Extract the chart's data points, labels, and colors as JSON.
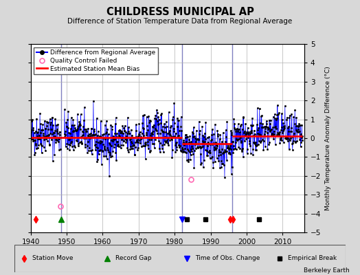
{
  "title": "CHILDRESS MUNICIPAL AP",
  "subtitle": "Difference of Station Temperature Data from Regional Average",
  "ylabel": "Monthly Temperature Anomaly Difference (°C)",
  "ylim": [
    -5,
    5
  ],
  "xlim": [
    1940,
    2016
  ],
  "xticks": [
    1940,
    1950,
    1960,
    1970,
    1980,
    1990,
    2000,
    2010
  ],
  "yticks": [
    -5,
    -4,
    -3,
    -2,
    -1,
    0,
    1,
    2,
    3,
    4,
    5
  ],
  "background_color": "#d8d8d8",
  "plot_bg_color": "#ffffff",
  "grid_color": "#b0b0b0",
  "line_color": "#0000ff",
  "bias_color": "#ff0000",
  "marker_color": "#000000",
  "qc_color": "#ff69b4",
  "vertical_line_color": "#8080c0",
  "vertical_lines": [
    1948.5,
    1982.0,
    1996.0
  ],
  "seed": 42,
  "bias_segments": [
    {
      "x_start": 1940,
      "x_end": 1948.5,
      "bias": 0.05
    },
    {
      "x_start": 1948.5,
      "x_end": 1982.0,
      "bias": 0.05
    },
    {
      "x_start": 1982.0,
      "x_end": 1996.0,
      "bias": -0.28
    },
    {
      "x_start": 1996.0,
      "x_end": 2015.5,
      "bias": 0.12
    }
  ],
  "qc_failed_points": [
    {
      "year": 1948.3,
      "value": -3.6
    },
    {
      "year": 1984.5,
      "value": -2.2
    }
  ],
  "station_move_year": [
    1941.5,
    1995.5,
    1996.2
  ],
  "record_gap_year": [
    1948.5
  ],
  "obs_change_year": [
    1982.0
  ],
  "empirical_break_year": [
    1983.5,
    1988.5,
    2003.5
  ],
  "event_y": -4.3,
  "berkeley_earth": "Berkeley Earth"
}
